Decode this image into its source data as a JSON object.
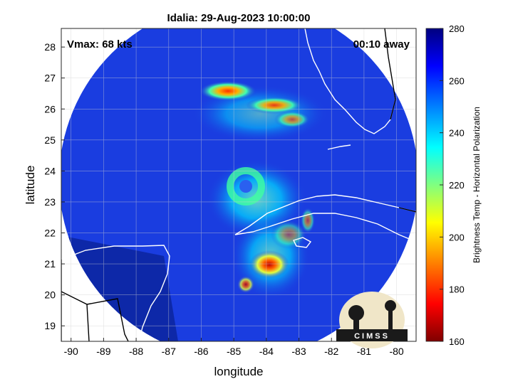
{
  "title": "Idalia: 29-Aug-2023 10:00:00",
  "vmax_label": "Vmax: 68 kts",
  "away_label": "00:10 away",
  "chart_data": {
    "type": "heatmap",
    "xlabel": "longitude",
    "ylabel": "latitude",
    "xlim": [
      -90.3,
      -79.4
    ],
    "ylim": [
      18.5,
      28.6
    ],
    "x_ticks": [
      "-90",
      "-89",
      "-88",
      "-87",
      "-86",
      "-85",
      "-84",
      "-83",
      "-82",
      "-81",
      "-80"
    ],
    "y_ticks": [
      "19",
      "20",
      "21",
      "22",
      "23",
      "24",
      "25",
      "26",
      "27",
      "28"
    ],
    "grid": true,
    "colorbar": {
      "label": "Brightness Temp - Horizontal Polarization",
      "range": [
        160,
        280
      ],
      "ticks": [
        "280",
        "260",
        "240",
        "220",
        "200",
        "180",
        "160"
      ],
      "colormap": [
        "#7f0000",
        "#ff0000",
        "#ff8000",
        "#ffff00",
        "#80ff80",
        "#00ffff",
        "#0080ff",
        "#0000ff",
        "#00007f"
      ]
    },
    "features": [
      {
        "name": "rainband-north",
        "lon": -84.0,
        "lat": 26.0,
        "tb_min": 190
      },
      {
        "name": "eye-center",
        "lon": -84.6,
        "lat": 23.4,
        "tb_min": 215
      },
      {
        "name": "rainband-south",
        "lon": -83.9,
        "lat": 20.9,
        "tb_min": 180
      }
    ],
    "background_tb": 260
  },
  "logo": {
    "text": "CIMSS"
  },
  "colors": {
    "ocean": "#1a3de0",
    "outer": "#0a2aa8",
    "coast": "#ffffff",
    "land_outline": "#000000"
  }
}
